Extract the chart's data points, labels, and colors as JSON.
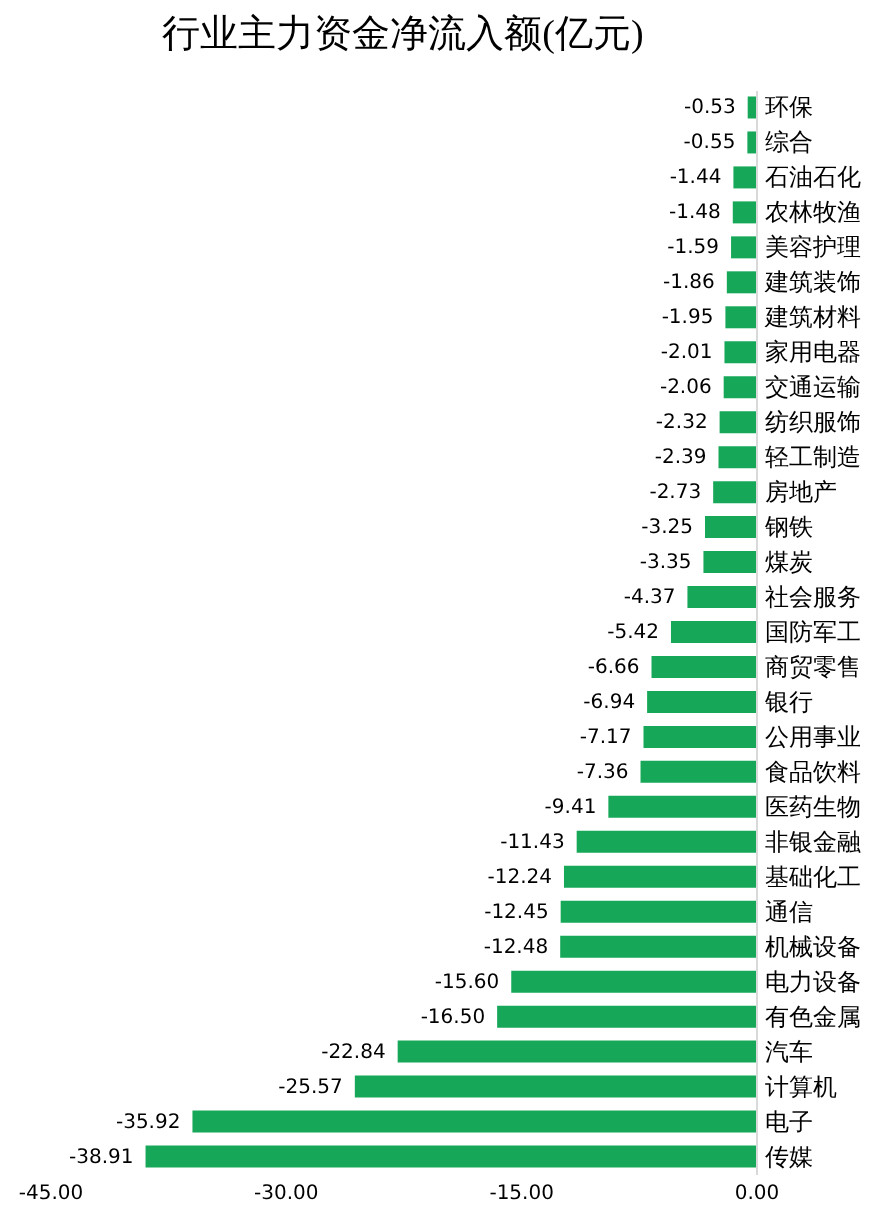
{
  "chart_data": {
    "type": "bar",
    "orientation": "horizontal",
    "title": "行业主力资金净流入额(亿元)",
    "categories": [
      "环保",
      "综合",
      "石油石化",
      "农林牧渔",
      "美容护理",
      "建筑装饰",
      "建筑材料",
      "家用电器",
      "交通运输",
      "纺织服饰",
      "轻工制造",
      "房地产",
      "钢铁",
      "煤炭",
      "社会服务",
      "国防军工",
      "商贸零售",
      "银行",
      "公用事业",
      "食品饮料",
      "医药生物",
      "非银金融",
      "基础化工",
      "通信",
      "机械设备",
      "电力设备",
      "有色金属",
      "汽车",
      "计算机",
      "电子",
      "传媒"
    ],
    "values": [
      -0.53,
      -0.55,
      -1.44,
      -1.48,
      -1.59,
      -1.86,
      -1.95,
      -2.01,
      -2.06,
      -2.32,
      -2.39,
      -2.73,
      -3.25,
      -3.35,
      -4.37,
      -5.42,
      -6.66,
      -6.94,
      -7.17,
      -7.36,
      -9.41,
      -11.43,
      -12.24,
      -12.45,
      -12.48,
      -15.6,
      -16.5,
      -22.84,
      -25.57,
      -35.92,
      -38.91
    ],
    "value_labels": [
      "-0.53",
      "-0.55",
      "-1.44",
      "-1.48",
      "-1.59",
      "-1.86",
      "-1.95",
      "-2.01",
      "-2.06",
      "-2.32",
      "-2.39",
      "-2.73",
      "-3.25",
      "-3.35",
      "-4.37",
      "-5.42",
      "-6.66",
      "-6.94",
      "-7.17",
      "-7.36",
      "-9.41",
      "-11.43",
      "-12.24",
      "-12.45",
      "-12.48",
      "-15.60",
      "-16.50",
      "-22.84",
      "-25.57",
      "-35.92",
      "-38.91"
    ],
    "color": "#16a858",
    "xlim": [
      -45,
      0
    ],
    "xticks": [
      {
        "value": -45,
        "label": "-45.00"
      },
      {
        "value": -30,
        "label": "-30.00"
      },
      {
        "value": -15,
        "label": "-15.00"
      },
      {
        "value": 0,
        "label": "0.00"
      }
    ],
    "grid": false
  }
}
